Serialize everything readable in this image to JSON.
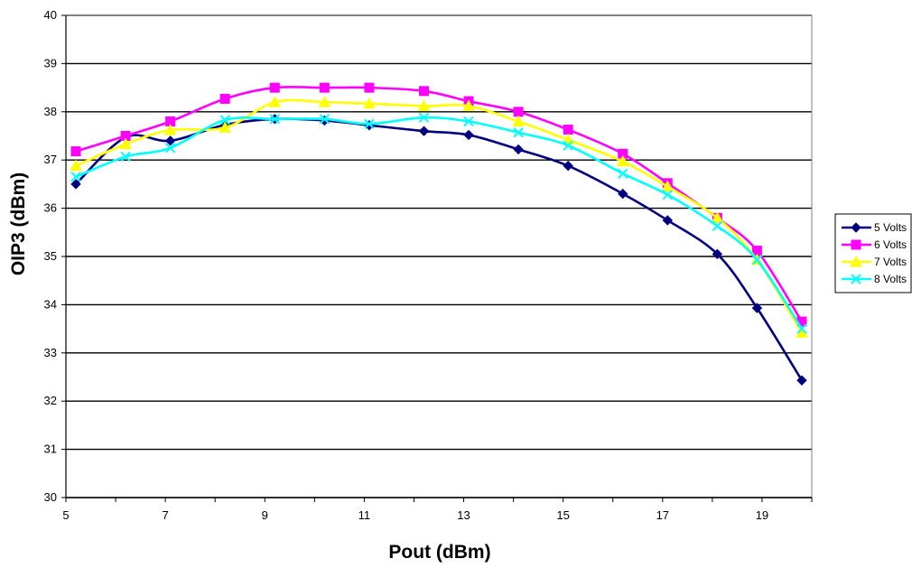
{
  "chart_data": {
    "type": "line",
    "title": "",
    "xlabel": "Pout (dBm)",
    "ylabel": "OIP3 (dBm)",
    "xlim": [
      5,
      20
    ],
    "ylim": [
      30,
      40
    ],
    "xticks": [
      5,
      7,
      9,
      11,
      13,
      15,
      17,
      19
    ],
    "yticks": [
      30,
      31,
      32,
      33,
      34,
      35,
      36,
      37,
      38,
      39,
      40
    ],
    "grid": "horizontal",
    "legend_position": "right",
    "series": [
      {
        "name": "5 Volts",
        "color": "#000080",
        "marker": "diamond",
        "x": [
          5.2,
          6.2,
          7.1,
          8.2,
          9.2,
          10.2,
          11.1,
          12.2,
          13.1,
          14.1,
          15.1,
          16.2,
          17.1,
          18.1,
          18.9,
          19.8
        ],
        "y": [
          36.5,
          37.47,
          37.4,
          37.73,
          37.85,
          37.82,
          37.72,
          37.6,
          37.52,
          37.22,
          36.88,
          36.3,
          35.75,
          35.05,
          33.93,
          32.43
        ]
      },
      {
        "name": "6 Volts",
        "color": "#ff00ff",
        "marker": "square",
        "x": [
          5.2,
          6.2,
          7.1,
          8.2,
          9.2,
          10.2,
          11.1,
          12.2,
          13.1,
          14.1,
          15.1,
          16.2,
          17.1,
          18.1,
          18.9,
          19.8
        ],
        "y": [
          37.18,
          37.5,
          37.8,
          38.27,
          38.5,
          38.5,
          38.5,
          38.43,
          38.22,
          38.0,
          37.63,
          37.13,
          36.52,
          35.8,
          35.12,
          33.65
        ]
      },
      {
        "name": "7 Volts",
        "color": "#ffff00",
        "marker": "triangle",
        "x": [
          5.2,
          6.2,
          7.1,
          8.2,
          9.2,
          10.2,
          11.1,
          12.2,
          13.1,
          14.1,
          15.1,
          16.2,
          17.1,
          18.1,
          18.9,
          19.8
        ],
        "y": [
          36.88,
          37.33,
          37.62,
          37.67,
          38.2,
          38.2,
          38.17,
          38.12,
          38.12,
          37.8,
          37.42,
          36.97,
          36.45,
          35.8,
          34.93,
          33.42
        ]
      },
      {
        "name": "8 Volts",
        "color": "#00ffff",
        "marker": "x",
        "x": [
          5.2,
          6.2,
          7.1,
          8.2,
          9.2,
          10.2,
          11.1,
          12.2,
          13.1,
          14.1,
          15.1,
          16.2,
          17.1,
          18.1,
          18.9,
          19.8
        ],
        "y": [
          36.65,
          37.07,
          37.25,
          37.83,
          37.85,
          37.85,
          37.75,
          37.88,
          37.8,
          37.57,
          37.3,
          36.72,
          36.28,
          35.63,
          34.93,
          33.5
        ]
      }
    ]
  }
}
